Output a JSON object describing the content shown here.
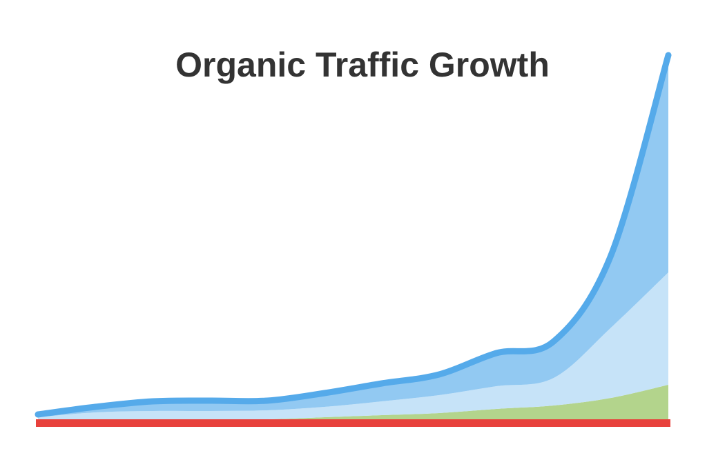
{
  "chart_data": {
    "type": "stacked-area",
    "title": "Organic Traffic Growth",
    "categories": [
      null,
      null,
      null,
      null,
      null,
      null,
      null,
      null,
      null,
      null,
      null,
      null
    ],
    "series": [
      {
        "color": "#b3d48c",
        "values": [
          0,
          0,
          0,
          0,
          0,
          3,
          6,
          9,
          15,
          20,
          31,
          50
        ]
      },
      {
        "color": "#c6e3f8",
        "values": [
          3,
          10,
          12,
          12,
          13,
          15,
          20,
          26,
          33,
          40,
          102,
          163
        ]
      },
      {
        "color": "#92c9f2",
        "values": [
          4,
          8,
          14,
          15,
          14,
          20,
          26,
          30,
          48,
          53,
          105,
          315
        ]
      }
    ],
    "line_color": "#55aaea",
    "baseline_color": "#e8413c"
  }
}
